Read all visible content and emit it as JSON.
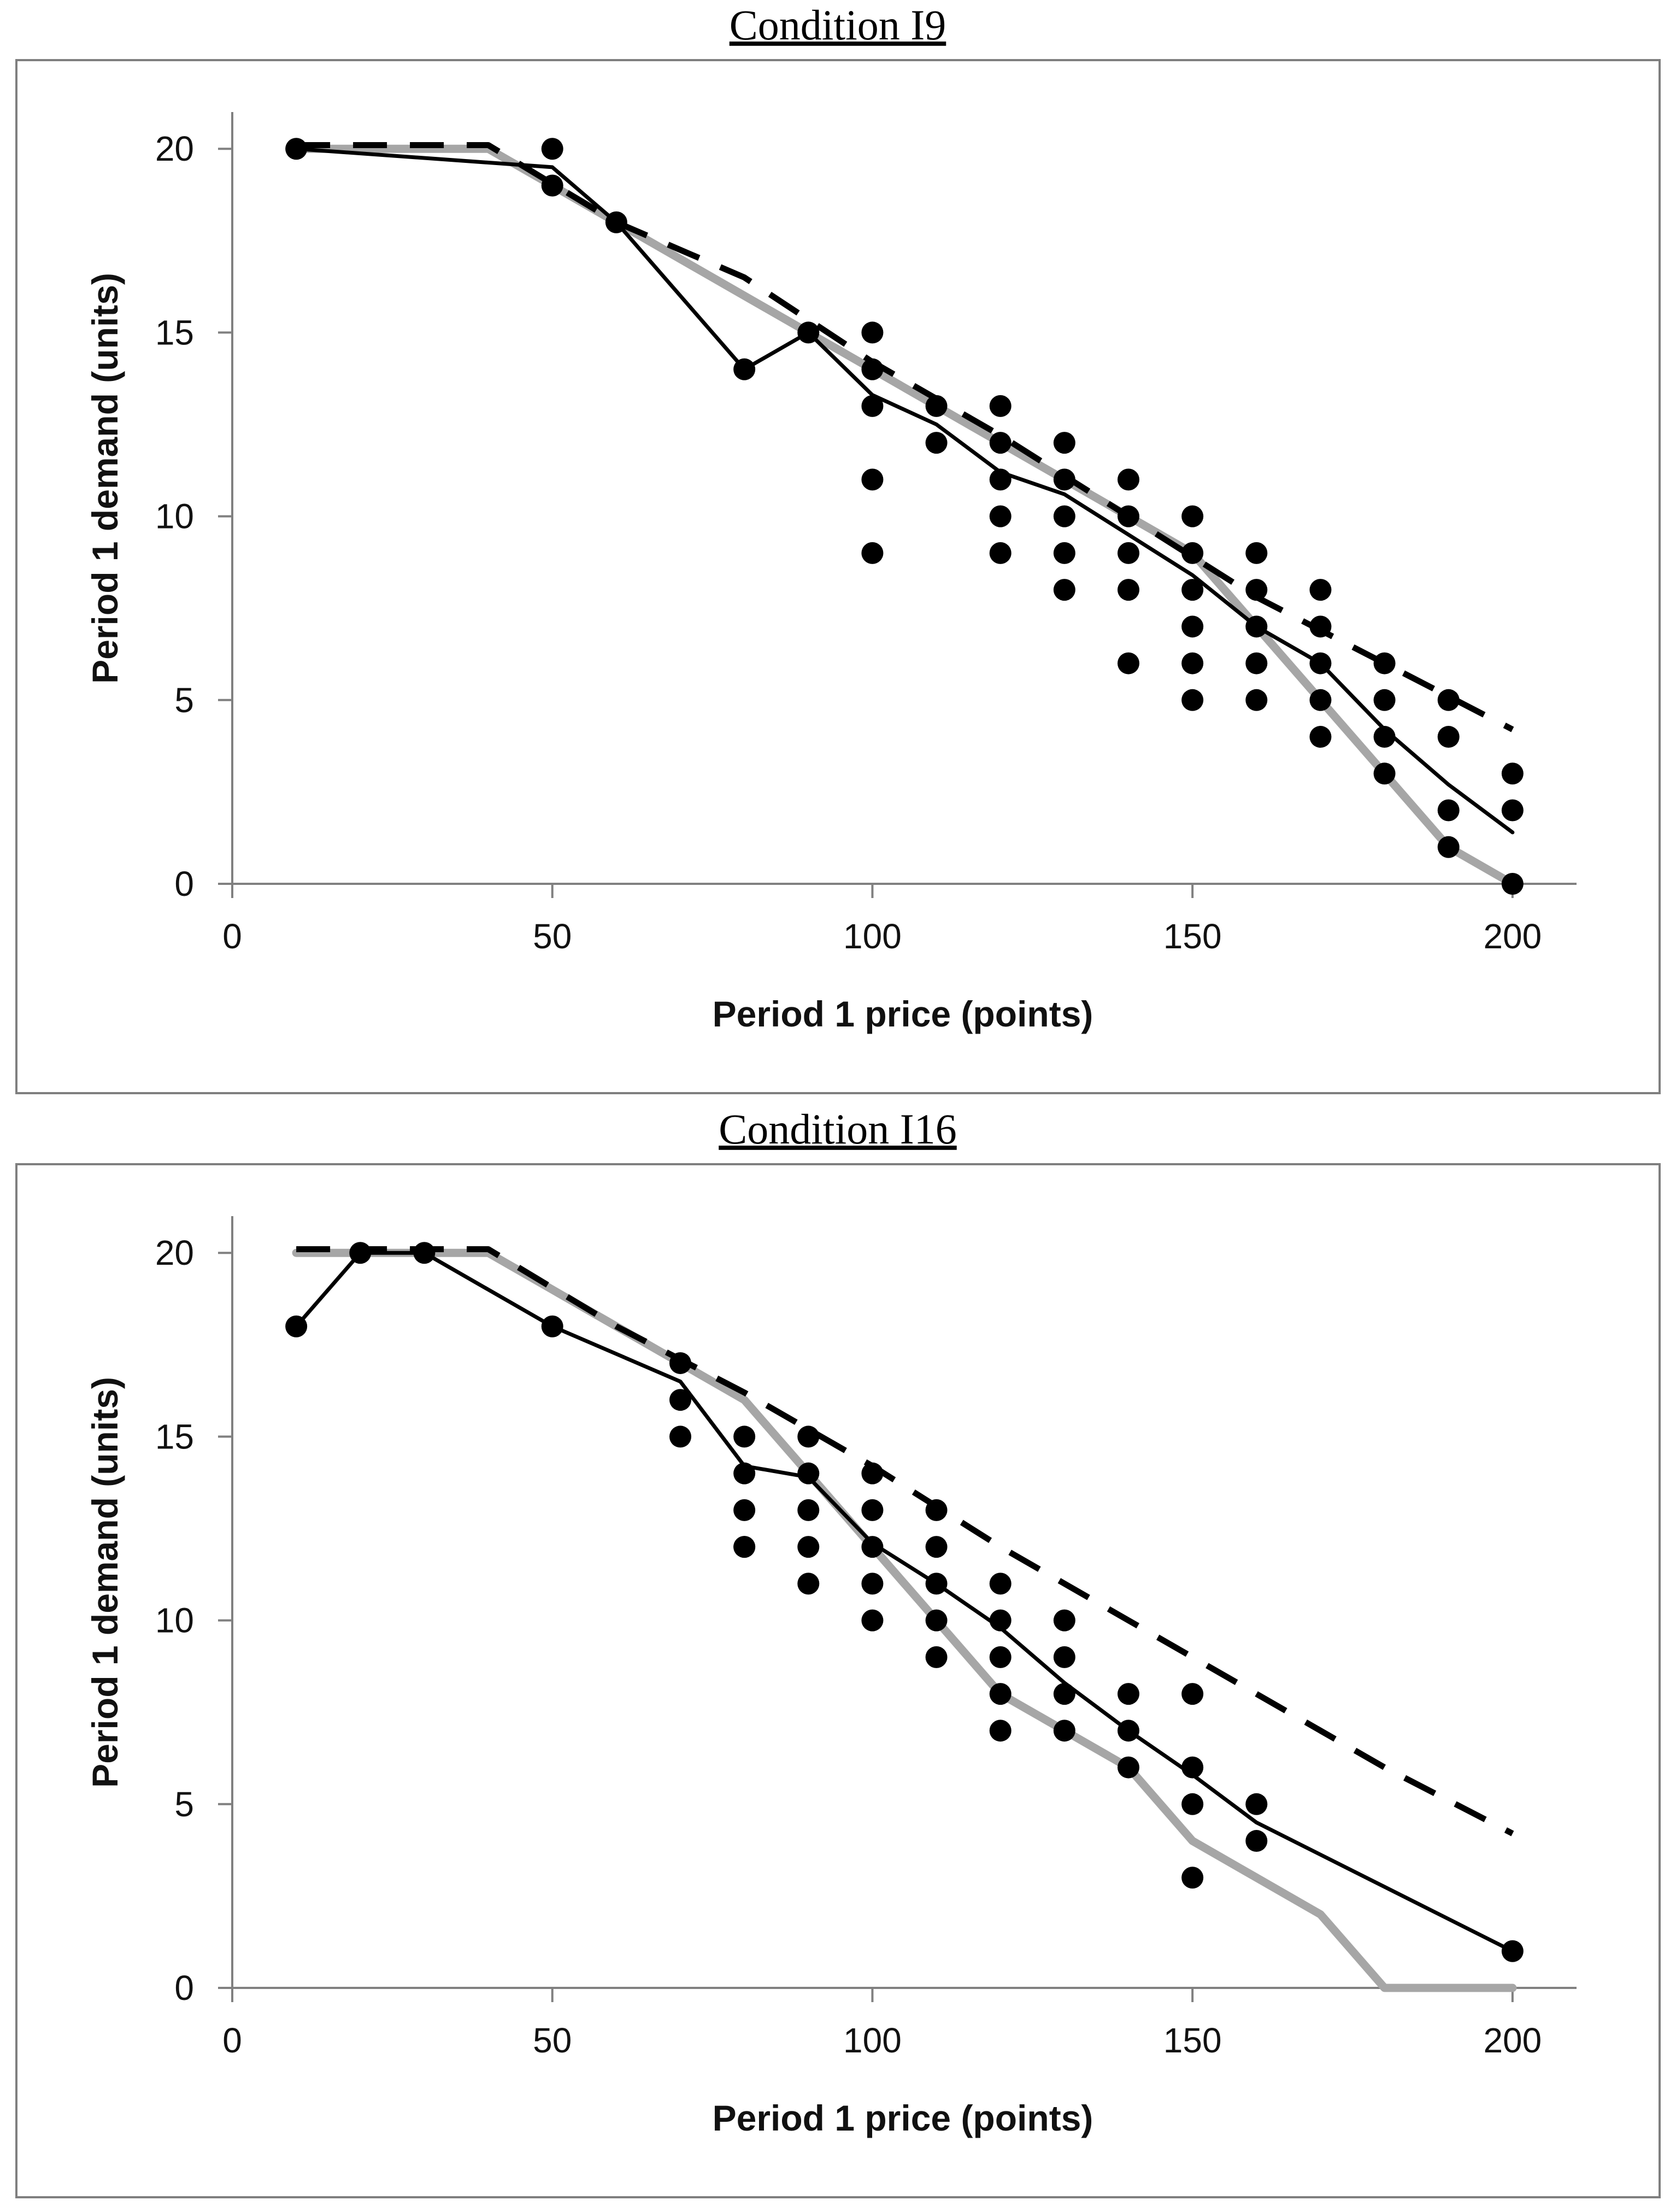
{
  "colors": {
    "observed_mean": "#000000",
    "gray_line": "#a6a6a6",
    "dashed_line": "#000000",
    "points": "#000000",
    "frame": "#7f7f7f",
    "axis": "#808080"
  },
  "chart_data": [
    {
      "type": "scatter",
      "title": "Condition I9",
      "xlabel": "Period 1 price (points)",
      "ylabel": "Period 1 demand (units)",
      "xlim": [
        0,
        210
      ],
      "ylim": [
        0,
        21
      ],
      "xticks": [
        0,
        50,
        100,
        150,
        200
      ],
      "yticks": [
        0,
        5,
        10,
        15,
        20
      ],
      "xtick_labels": [
        "0",
        "50",
        "100",
        "150",
        "200"
      ],
      "ytick_labels": [
        "0",
        "5",
        "10",
        "15",
        "20"
      ],
      "grid": false,
      "legend": "none",
      "series": [
        {
          "style": "gray-solid",
          "x": [
            10,
            40,
            60,
            90,
            110,
            130,
            150,
            160,
            170,
            180,
            190,
            200
          ],
          "y": [
            20,
            20,
            18,
            15,
            13,
            11,
            9,
            7,
            5,
            3,
            1,
            0
          ]
        },
        {
          "style": "black-dashed",
          "x": [
            10,
            40,
            60,
            80,
            100,
            120,
            140,
            160,
            180,
            200
          ],
          "y": [
            20.1,
            20.1,
            18,
            16.5,
            14.2,
            12.2,
            10,
            7.8,
            6,
            4.2
          ]
        },
        {
          "style": "black-solid",
          "x": [
            10,
            50,
            60,
            80,
            90,
            100,
            110,
            120,
            130,
            140,
            150,
            160,
            170,
            180,
            190,
            200
          ],
          "y": [
            20,
            19.5,
            18,
            14,
            15,
            13.3,
            12.5,
            11.2,
            10.6,
            9.5,
            8.4,
            7,
            6,
            4.2,
            2.7,
            1.4
          ]
        },
        {
          "style": "points",
          "x": [
            10,
            50,
            50,
            60,
            80,
            90,
            100,
            100,
            100,
            100,
            100,
            110,
            110,
            120,
            120,
            120,
            120,
            120,
            130,
            130,
            130,
            130,
            130,
            140,
            140,
            140,
            140,
            140,
            150,
            150,
            150,
            150,
            150,
            150,
            160,
            160,
            160,
            160,
            160,
            170,
            170,
            170,
            170,
            170,
            180,
            180,
            180,
            180,
            190,
            190,
            190,
            190,
            200,
            200,
            200
          ],
          "y": [
            20,
            20,
            19,
            18,
            14,
            15,
            15,
            14,
            13,
            11,
            9,
            13,
            12,
            13,
            12,
            11,
            10,
            9,
            12,
            11,
            10,
            9,
            8,
            11,
            10,
            9,
            8,
            6,
            10,
            9,
            8,
            7,
            6,
            5,
            9,
            8,
            7,
            6,
            5,
            8,
            7,
            6,
            5,
            4,
            6,
            5,
            4,
            3,
            5,
            4,
            2,
            1,
            3,
            2,
            0
          ]
        }
      ]
    },
    {
      "type": "scatter",
      "title": "Condition I16",
      "xlabel": "Period 1 price (points)",
      "ylabel": "Period 1 demand (units)",
      "xlim": [
        0,
        210
      ],
      "ylim": [
        0,
        21
      ],
      "xticks": [
        0,
        50,
        100,
        150,
        200
      ],
      "yticks": [
        0,
        5,
        10,
        15,
        20
      ],
      "xtick_labels": [
        "0",
        "50",
        "100",
        "150",
        "200"
      ],
      "ytick_labels": [
        "0",
        "5",
        "10",
        "15",
        "20"
      ],
      "grid": false,
      "legend": "none",
      "series": [
        {
          "style": "gray-solid",
          "x": [
            10,
            40,
            60,
            80,
            90,
            100,
            110,
            120,
            130,
            140,
            150,
            160,
            170,
            180,
            200
          ],
          "y": [
            20,
            20,
            18,
            16,
            14,
            12,
            10,
            8,
            7,
            6,
            4,
            3,
            2,
            0,
            0
          ]
        },
        {
          "style": "black-dashed",
          "x": [
            10,
            40,
            60,
            80,
            100,
            120,
            140,
            160,
            180,
            200
          ],
          "y": [
            20.1,
            20.1,
            18,
            16.2,
            14.2,
            12,
            10,
            8,
            6,
            4.2
          ]
        },
        {
          "style": "black-solid",
          "x": [
            10,
            20,
            30,
            50,
            70,
            80,
            90,
            100,
            110,
            120,
            130,
            140,
            150,
            160,
            200
          ],
          "y": [
            18,
            20,
            20,
            18,
            16.5,
            14.2,
            13.9,
            12.1,
            11,
            9.8,
            8.3,
            7,
            5.8,
            4.5,
            1
          ]
        },
        {
          "style": "points",
          "x": [
            10,
            20,
            30,
            50,
            70,
            70,
            70,
            80,
            80,
            80,
            80,
            80,
            90,
            90,
            90,
            90,
            90,
            100,
            100,
            100,
            100,
            100,
            110,
            110,
            110,
            110,
            110,
            120,
            120,
            120,
            120,
            120,
            130,
            130,
            130,
            130,
            140,
            140,
            140,
            150,
            150,
            150,
            150,
            160,
            160,
            200
          ],
          "y": [
            18,
            20,
            20,
            18,
            17,
            16,
            15,
            15,
            14,
            13,
            12,
            12,
            15,
            14,
            13,
            12,
            11,
            14,
            13,
            12,
            11,
            10,
            13,
            12,
            11,
            10,
            9,
            11,
            10,
            9,
            8,
            7,
            10,
            9,
            8,
            7,
            8,
            7,
            6,
            8,
            6,
            5,
            3,
            5,
            4,
            1
          ]
        }
      ]
    }
  ]
}
